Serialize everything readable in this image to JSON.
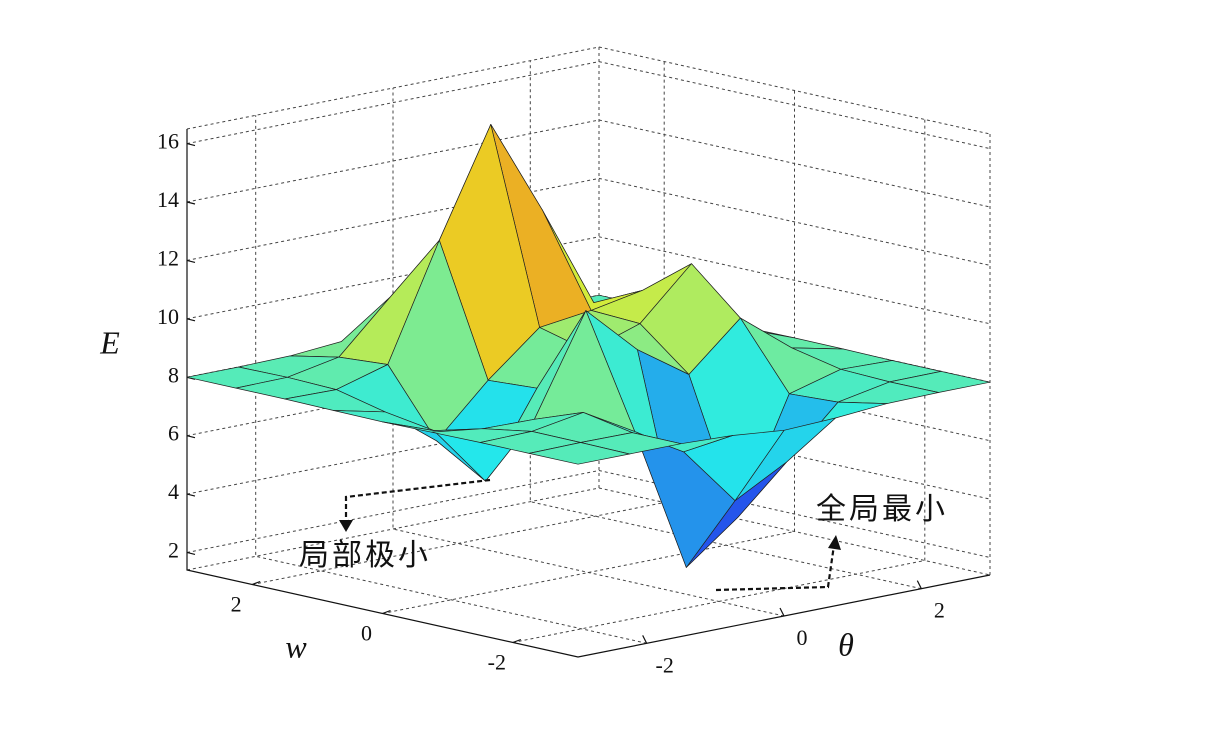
{
  "chart_data": {
    "type": "surface",
    "xlabel": "θ",
    "ylabel": "w",
    "zlabel": "E",
    "x": [
      -3,
      -2.25,
      -1.5,
      -0.75,
      0,
      0.75,
      1.5,
      2.25,
      3
    ],
    "y": [
      -3,
      -2.25,
      -1.5,
      -0.75,
      0,
      0.75,
      1.5,
      2.25,
      3
    ],
    "z": [
      [
        8.0,
        8.0,
        8.0,
        7.93,
        7.76,
        7.83,
        7.97,
        8.0,
        8.0
      ],
      [
        8.0,
        8.02,
        8.01,
        7.0,
        4.98,
        5.95,
        7.65,
        7.99,
        8.0
      ],
      [
        8.0,
        8.03,
        8.33,
        7.32,
        2.32,
        3.68,
        7.56,
        8.05,
        8.0
      ],
      [
        7.98,
        7.75,
        7.72,
        11.09,
        9.4,
        8.2,
        9.78,
        8.41,
        8.02
      ],
      [
        7.96,
        7.31,
        5.23,
        8.06,
        8.98,
        9.57,
        11.27,
        8.7,
        8.03
      ],
      [
        7.98,
        7.58,
        6.24,
        7.96,
        9.42,
        9.65,
        9.99,
        8.4,
        8.02
      ],
      [
        8.0,
        7.97,
        8.48,
        12.38,
        16.0,
        12.72,
        9.19,
        8.12,
        8.0
      ],
      [
        8.0,
        8.02,
        8.36,
        10.07,
        11.65,
        10.09,
        8.41,
        8.03,
        8.0
      ],
      [
        8.0,
        8.0,
        8.03,
        8.17,
        8.3,
        8.17,
        8.03,
        8.0,
        8.0
      ]
    ],
    "xlim": [
      -3,
      3
    ],
    "ylim": [
      -3,
      3
    ],
    "zlim": [
      1.4,
      16.5
    ],
    "xticks": [
      -2,
      0,
      2
    ],
    "yticks": [
      -2,
      0,
      2
    ],
    "zticks": [
      2,
      4,
      6,
      8,
      10,
      12,
      14,
      16
    ],
    "grid": true,
    "colormap": "jet",
    "annotations": [
      {
        "text": "局部极小"
      },
      {
        "text": "全局最小"
      }
    ]
  }
}
